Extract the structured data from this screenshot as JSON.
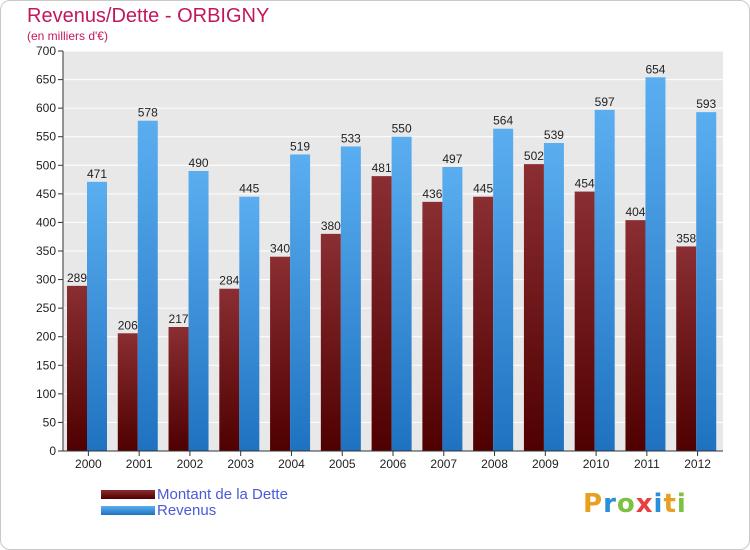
{
  "chart_data": {
    "type": "bar",
    "title": "Revenus/Dette - ORBIGNY",
    "subtitle": "(en milliers d'€)",
    "categories": [
      "2000",
      "2001",
      "2002",
      "2003",
      "2004",
      "2005",
      "2006",
      "2007",
      "2008",
      "2009",
      "2010",
      "2011",
      "2012"
    ],
    "series": [
      {
        "name": "Montant de la Dette",
        "values": [
          289,
          206,
          217,
          284,
          340,
          380,
          481,
          436,
          445,
          502,
          454,
          404,
          358
        ],
        "color": "#6b0d0d"
      },
      {
        "name": "Revenus",
        "values": [
          471,
          578,
          490,
          445,
          519,
          533,
          550,
          497,
          564,
          539,
          597,
          654,
          593
        ],
        "color": "#2f86d6"
      }
    ],
    "ylim": [
      0,
      700
    ],
    "yticks": [
      0,
      50,
      100,
      150,
      200,
      250,
      300,
      350,
      400,
      450,
      500,
      550,
      600,
      650,
      700
    ],
    "grid": true,
    "legend": "bottom-left"
  },
  "branding": {
    "logo_letters": [
      "P",
      "r",
      "o",
      "x",
      "i",
      "t",
      "i"
    ],
    "logo_colors": [
      "#e8a020",
      "#2a8fd8",
      "#7cc142",
      "#e84040",
      "#2a8fd8",
      "#e8a020",
      "#7cc142"
    ]
  }
}
